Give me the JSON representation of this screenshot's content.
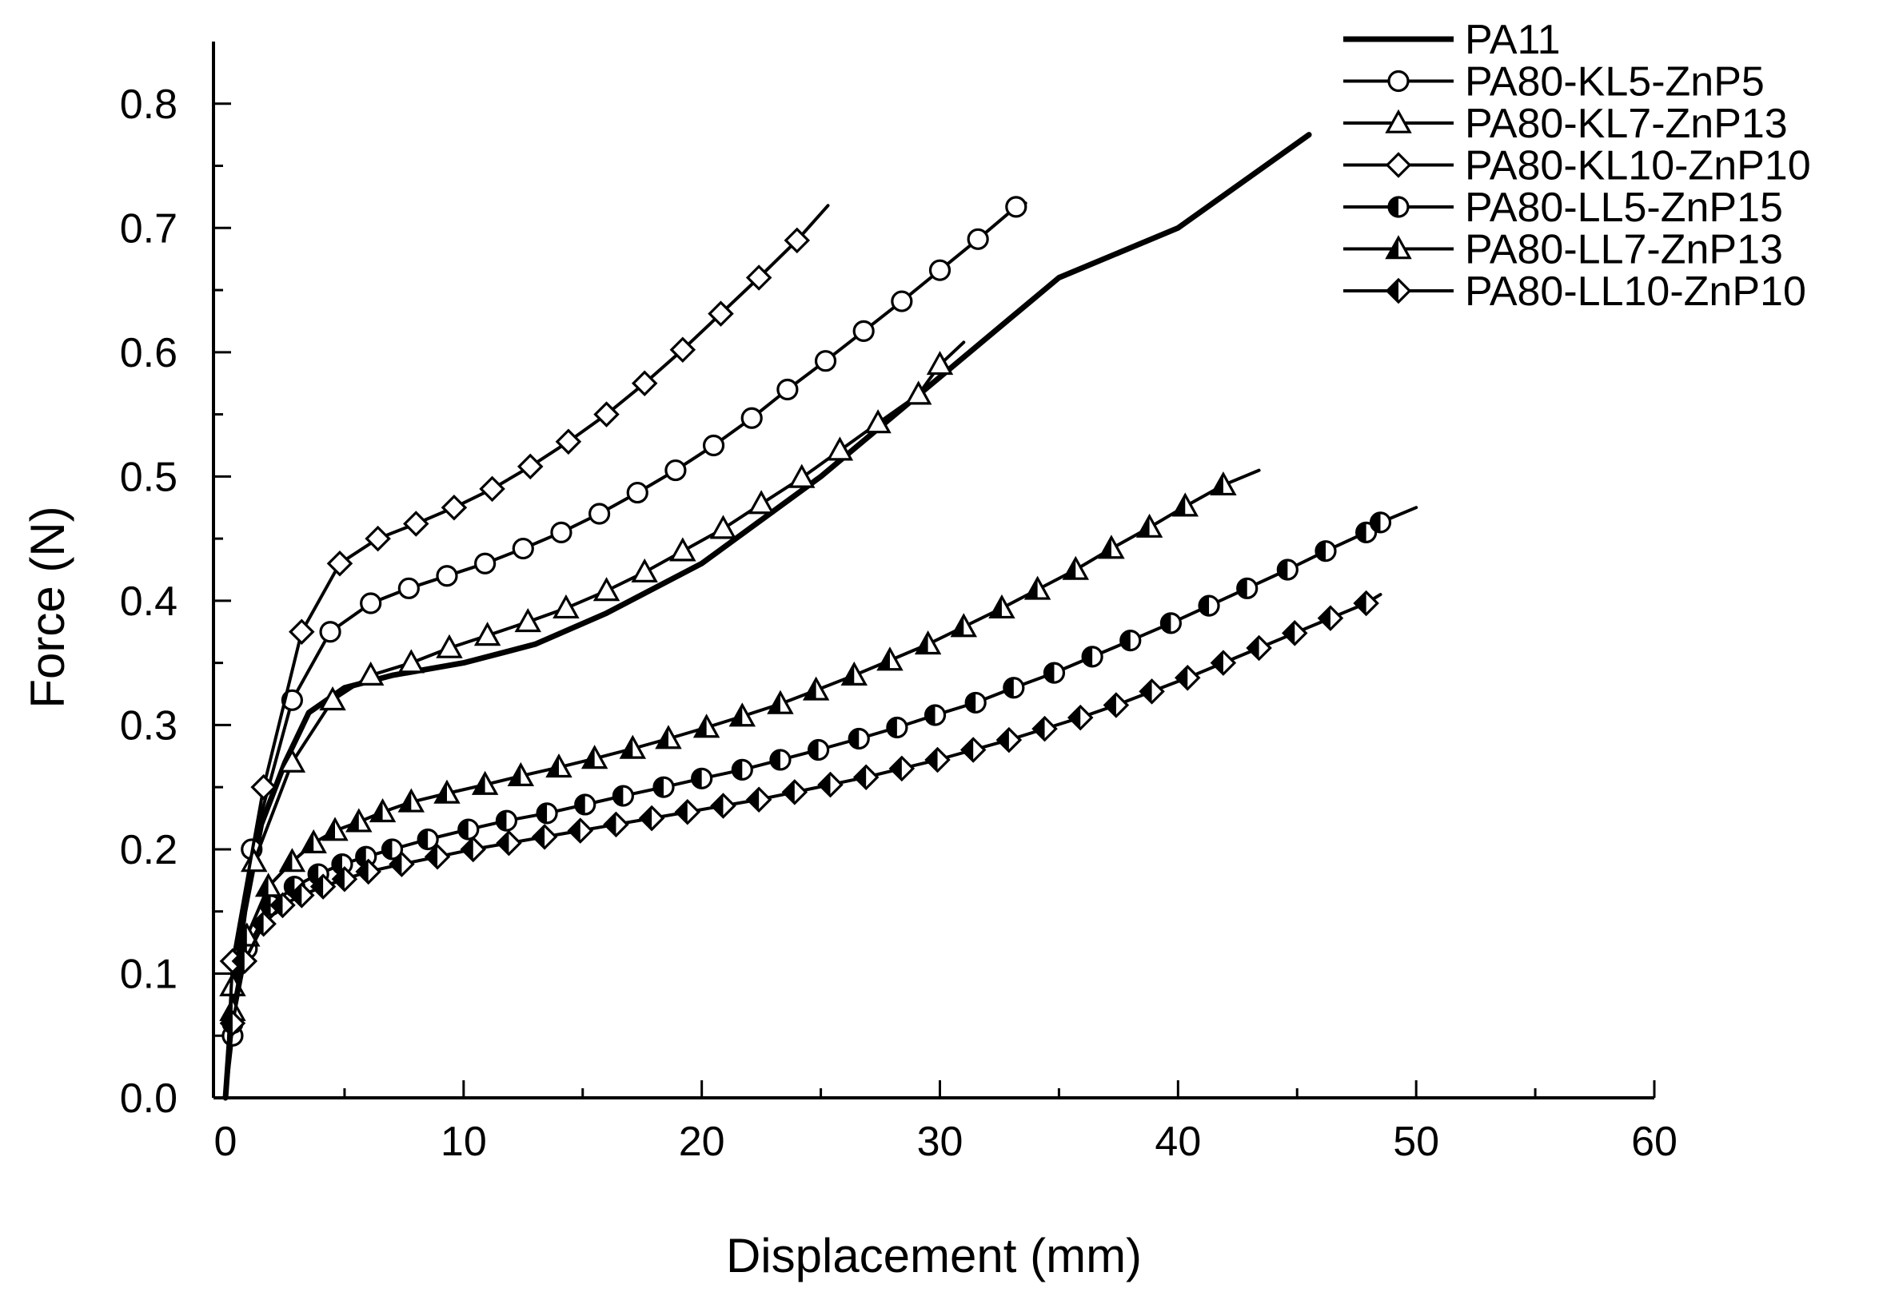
{
  "chart_data": {
    "type": "line",
    "title": "",
    "xlabel": "Displacement (mm)",
    "ylabel": "Force (N)",
    "xlim": [
      0,
      60
    ],
    "ylim": [
      0,
      0.85
    ],
    "xticks": [
      0,
      10,
      20,
      30,
      40,
      50,
      60
    ],
    "yticks": [
      0.0,
      0.1,
      0.2,
      0.3,
      0.4,
      0.5,
      0.6,
      0.7,
      0.8
    ],
    "xtick_labels": [
      "0",
      "10",
      "20",
      "30",
      "40",
      "50",
      "60"
    ],
    "ytick_labels": [
      "0.0",
      "0.1",
      "0.2",
      "0.3",
      "0.4",
      "0.5",
      "0.6",
      "0.7",
      "0.8"
    ],
    "grid": false,
    "legend_position": "top-right",
    "series": [
      {
        "name": "PA11",
        "marker": "none",
        "x": [
          0,
          0.3,
          0.8,
          1.5,
          2.5,
          3.5,
          5,
          7,
          10,
          13,
          16,
          20,
          25,
          30,
          35,
          40,
          45.5
        ],
        "y": [
          0,
          0.08,
          0.15,
          0.22,
          0.27,
          0.31,
          0.33,
          0.34,
          0.35,
          0.365,
          0.39,
          0.43,
          0.5,
          0.58,
          0.66,
          0.7,
          0.775
        ]
      },
      {
        "name": "PA80-KL5-ZnP5",
        "marker": "circle-open",
        "x": [
          0,
          0.3,
          1.1,
          2.8,
          4.4,
          6.1,
          7.7,
          9.3,
          10.9,
          12.5,
          14.1,
          15.7,
          17.3,
          18.9,
          20.5,
          22.1,
          23.6,
          25.2,
          26.8,
          28.4,
          30.0,
          31.6,
          33.2,
          33.6
        ],
        "y": [
          0,
          0.05,
          0.2,
          0.32,
          0.375,
          0.398,
          0.41,
          0.42,
          0.43,
          0.442,
          0.455,
          0.47,
          0.487,
          0.505,
          0.525,
          0.547,
          0.57,
          0.593,
          0.617,
          0.641,
          0.666,
          0.691,
          0.717,
          0.72
        ]
      },
      {
        "name": "PA80-KL7-ZnP13",
        "marker": "triangle-open",
        "x": [
          0,
          0.3,
          1.2,
          2.8,
          4.5,
          6.1,
          7.8,
          9.4,
          11.0,
          12.7,
          14.3,
          16.0,
          17.6,
          19.2,
          20.9,
          22.5,
          24.2,
          25.8,
          27.4,
          29.1,
          30.0,
          31.0
        ],
        "y": [
          0,
          0.09,
          0.19,
          0.27,
          0.32,
          0.34,
          0.35,
          0.362,
          0.372,
          0.383,
          0.394,
          0.408,
          0.423,
          0.44,
          0.458,
          0.478,
          0.499,
          0.521,
          0.543,
          0.566,
          0.59,
          0.608
        ]
      },
      {
        "name": "PA80-KL10-ZnP10",
        "marker": "diamond-open",
        "x": [
          0,
          0.3,
          1.6,
          3.2,
          4.8,
          6.4,
          8.0,
          9.6,
          11.2,
          12.8,
          14.4,
          16.0,
          17.6,
          19.2,
          20.8,
          22.4,
          24.0,
          25.3
        ],
        "y": [
          0,
          0.11,
          0.25,
          0.375,
          0.43,
          0.45,
          0.462,
          0.475,
          0.49,
          0.508,
          0.528,
          0.55,
          0.575,
          0.602,
          0.631,
          0.66,
          0.69,
          0.718
        ]
      },
      {
        "name": "PA80-LL5-ZnP15",
        "marker": "circle-half",
        "x": [
          0,
          0.3,
          0.9,
          1.9,
          2.9,
          3.9,
          4.9,
          5.9,
          7.0,
          8.5,
          10.2,
          11.8,
          13.5,
          15.1,
          16.7,
          18.4,
          20.0,
          21.7,
          23.3,
          24.9,
          26.6,
          28.2,
          29.8,
          31.5,
          33.1,
          34.8,
          36.4,
          38.0,
          39.7,
          41.3,
          42.9,
          44.6,
          46.2,
          47.9,
          48.5,
          50.0
        ],
        "y": [
          0,
          0.06,
          0.12,
          0.155,
          0.17,
          0.18,
          0.188,
          0.194,
          0.2,
          0.208,
          0.216,
          0.223,
          0.229,
          0.236,
          0.243,
          0.25,
          0.257,
          0.264,
          0.272,
          0.28,
          0.289,
          0.298,
          0.308,
          0.318,
          0.33,
          0.342,
          0.355,
          0.368,
          0.382,
          0.396,
          0.41,
          0.425,
          0.44,
          0.455,
          0.463,
          0.475
        ]
      },
      {
        "name": "PA80-LL7-ZnP13",
        "marker": "triangle-half",
        "x": [
          0,
          0.3,
          0.9,
          1.8,
          2.8,
          3.7,
          4.6,
          5.6,
          6.6,
          7.8,
          9.3,
          10.9,
          12.4,
          14.0,
          15.5,
          17.1,
          18.6,
          20.2,
          21.7,
          23.3,
          24.8,
          26.4,
          27.9,
          29.5,
          31.0,
          32.6,
          34.1,
          35.7,
          37.2,
          38.8,
          40.3,
          41.9,
          43.4
        ],
        "y": [
          0,
          0.07,
          0.13,
          0.17,
          0.19,
          0.205,
          0.215,
          0.222,
          0.23,
          0.238,
          0.245,
          0.252,
          0.259,
          0.266,
          0.273,
          0.281,
          0.289,
          0.298,
          0.307,
          0.317,
          0.328,
          0.34,
          0.352,
          0.365,
          0.379,
          0.394,
          0.409,
          0.425,
          0.442,
          0.459,
          0.476,
          0.493,
          0.505
        ]
      },
      {
        "name": "PA80-LL10-ZnP10",
        "marker": "diamond-half",
        "x": [
          0,
          0.3,
          0.8,
          1.6,
          2.4,
          3.2,
          4.1,
          5.0,
          6.0,
          7.4,
          8.9,
          10.4,
          11.9,
          13.4,
          14.9,
          16.4,
          17.9,
          19.4,
          20.9,
          22.4,
          23.9,
          25.4,
          26.9,
          28.4,
          29.9,
          31.4,
          32.9,
          34.4,
          35.9,
          37.4,
          38.9,
          40.4,
          41.9,
          43.4,
          44.9,
          46.4,
          47.9,
          48.5
        ],
        "y": [
          0,
          0.06,
          0.11,
          0.14,
          0.155,
          0.163,
          0.17,
          0.176,
          0.182,
          0.188,
          0.194,
          0.2,
          0.205,
          0.21,
          0.215,
          0.22,
          0.225,
          0.23,
          0.235,
          0.24,
          0.246,
          0.252,
          0.258,
          0.265,
          0.272,
          0.28,
          0.288,
          0.297,
          0.306,
          0.316,
          0.327,
          0.338,
          0.35,
          0.362,
          0.374,
          0.386,
          0.398,
          0.405
        ]
      }
    ]
  }
}
